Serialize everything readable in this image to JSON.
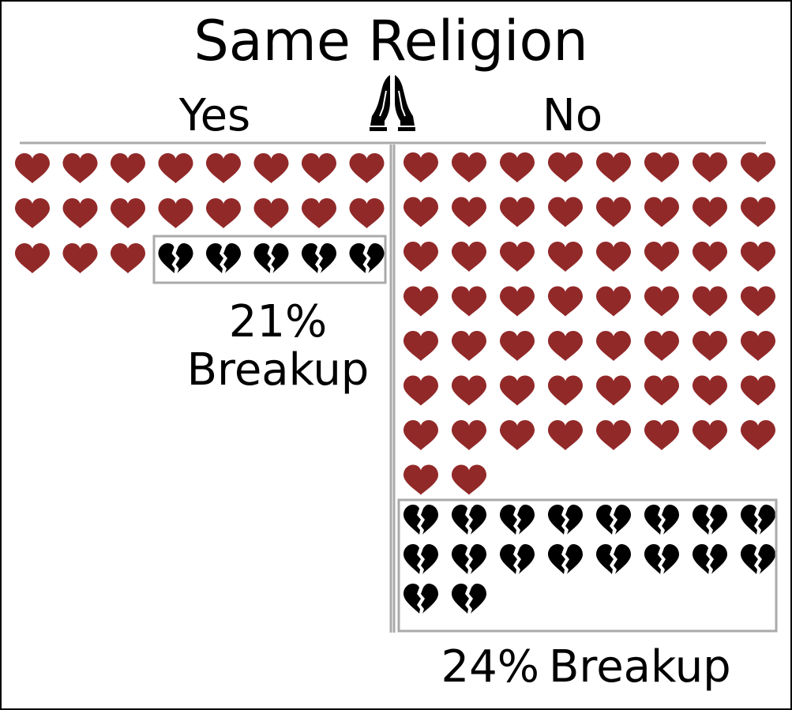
{
  "chart_data": {
    "type": "pictograph",
    "title": "Same Religion",
    "icon": "praying-hands-icon",
    "unit_icon": "heart-icon",
    "broken_unit_icon": "broken-heart-icon",
    "colors": {
      "heart": "#922929",
      "broken_heart": "#000000",
      "frame": "#aaaaaa",
      "divider": "#aaaaaa"
    },
    "groups": [
      {
        "name": "Yes",
        "intact": 19,
        "broken": 5,
        "percent_label": "21%",
        "breakup_label": "Breakup"
      },
      {
        "name": "No",
        "intact": 58,
        "broken": 18,
        "percent_label": "24%",
        "breakup_label": "Breakup"
      }
    ]
  }
}
